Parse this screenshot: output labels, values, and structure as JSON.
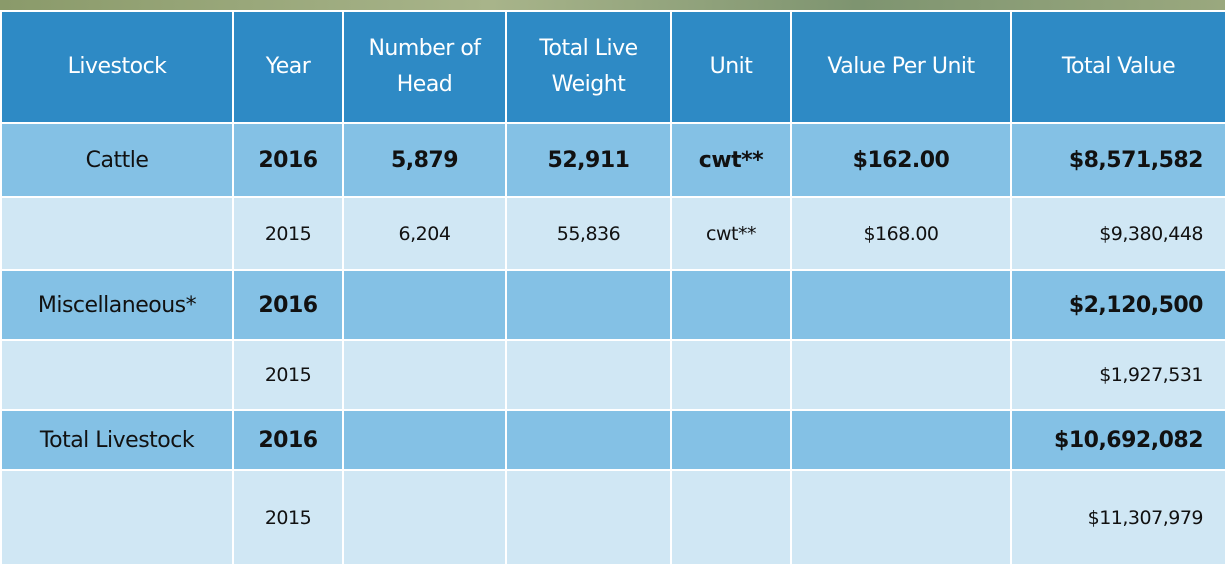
{
  "table": {
    "header": [
      "Livestock",
      "Year",
      "Number of Head",
      "Total Live Weight",
      "Unit",
      "Value Per Unit",
      "Total Value"
    ],
    "rows": [
      {
        "livestock": "Cattle",
        "year": "2016",
        "head": "5,879",
        "weight": "52,911",
        "unit": "cwt**",
        "per_unit": "$162.00",
        "total": "$8,571,582"
      },
      {
        "year": "2015",
        "head": "6,204",
        "weight": "55,836",
        "unit": "cwt**",
        "per_unit": "$168.00",
        "total": "$9,380,448"
      },
      {
        "livestock": "Miscellaneous*",
        "year": "2016",
        "total": "$2,120,500"
      },
      {
        "year": "2015",
        "total": "$1,927,531"
      },
      {
        "livestock": "Total Livestock",
        "year": "2016",
        "total": "$10,692,082"
      },
      {
        "year": "2015",
        "total": "$11,307,979"
      }
    ]
  }
}
